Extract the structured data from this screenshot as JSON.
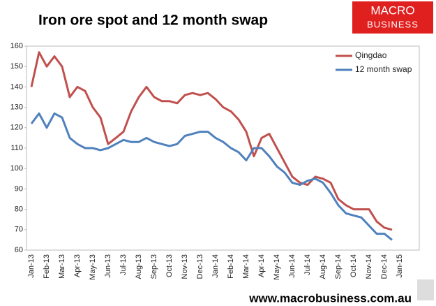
{
  "chart_data": {
    "type": "line",
    "title": "Iron ore spot and 12 month swap",
    "logo": [
      "MACRO",
      "BUSINESS"
    ],
    "source": "www.macrobusiness.com.au",
    "categories": [
      "Jan-13",
      null,
      "Feb-13",
      null,
      "Mar-13",
      null,
      "Apr-13",
      null,
      "May-13",
      null,
      "Jun-13",
      null,
      "Jul-13",
      null,
      "Aug-13",
      null,
      "Sep-13",
      null,
      "Oct-13",
      null,
      "Nov-13",
      null,
      "Dec-13",
      null,
      "Jan-14",
      null,
      "Feb-14",
      null,
      "Mar-14",
      null,
      "Apr-14",
      null,
      "May-14",
      null,
      "Jun-14",
      null,
      "Jul-14",
      null,
      "Aug-14",
      null,
      "Sep-14",
      null,
      "Oct-14",
      null,
      "Nov-14",
      null,
      "Dec-14",
      null,
      "Jan-15"
    ],
    "series": [
      {
        "name": "Qingdao",
        "color": "#c0504d",
        "values": [
          140,
          157,
          150,
          155,
          150,
          135,
          140,
          138,
          130,
          125,
          112,
          115,
          118,
          128,
          135,
          140,
          135,
          133,
          133,
          132,
          136,
          137,
          136,
          137,
          134,
          130,
          128,
          124,
          118,
          106,
          115,
          117,
          110,
          103,
          96,
          93,
          92,
          96,
          95,
          93,
          85,
          82,
          80,
          80,
          80,
          74,
          71,
          70,
          null
        ]
      },
      {
        "name": "12 month swap",
        "color": "#4f81bd",
        "values": [
          122,
          127,
          120,
          127,
          125,
          115,
          112,
          110,
          110,
          109,
          110,
          112,
          114,
          113,
          113,
          115,
          113,
          112,
          111,
          112,
          116,
          117,
          118,
          118,
          115,
          113,
          110,
          108,
          104,
          110,
          110,
          106,
          101,
          98,
          93,
          92,
          94,
          95,
          93,
          88,
          82,
          78,
          77,
          76,
          72,
          68,
          68,
          65,
          null
        ]
      }
    ],
    "ylim": [
      60,
      160
    ],
    "yticks": [
      60,
      70,
      80,
      90,
      100,
      110,
      120,
      130,
      140,
      150,
      160
    ],
    "grid": false,
    "legend": "upper right"
  }
}
